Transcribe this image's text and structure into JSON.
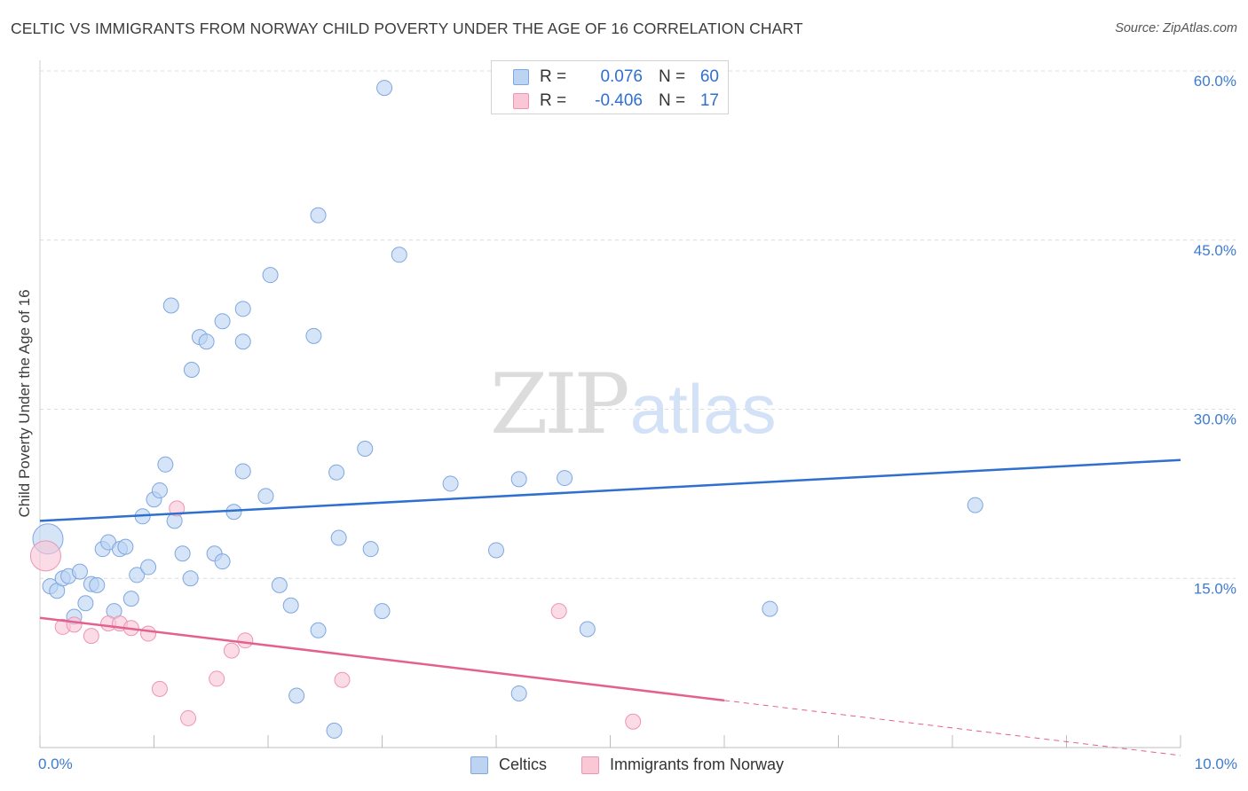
{
  "header": {
    "title": "CELTIC VS IMMIGRANTS FROM NORWAY CHILD POVERTY UNDER THE AGE OF 16 CORRELATION CHART",
    "source": "Source: ZipAtlas.com"
  },
  "watermark": {
    "zip": "ZIP",
    "atlas": "atlas"
  },
  "legend": {
    "r_label": "R =",
    "n_label": "N =",
    "rows": [
      {
        "r": "0.076",
        "n": "60"
      },
      {
        "r": "-0.406",
        "n": "17"
      }
    ]
  },
  "colors": {
    "celtics_fill": "#bcd3f2",
    "celtics_stroke": "#7fa7e0",
    "celtics_line": "#2f6fd0",
    "norway_fill": "#f9c7d6",
    "norway_stroke": "#ee94b2",
    "norway_line": "#e4608f",
    "tick_label": "#3d7bd0",
    "grid": "#dcdcdc"
  },
  "chart_data": {
    "type": "scatter",
    "title": "CELTIC VS IMMIGRANTS FROM NORWAY CHILD POVERTY UNDER THE AGE OF 16 CORRELATION CHART",
    "xlabel": "",
    "ylabel": "Child Poverty Under the Age of 16",
    "xlim": [
      0,
      10
    ],
    "ylim": [
      0,
      60
    ],
    "x_tick_labels": [
      "0.0%",
      "10.0%"
    ],
    "y_ticks": [
      15,
      30,
      45,
      60
    ],
    "y_tick_labels": [
      "15.0%",
      "30.0%",
      "45.0%",
      "60.0%"
    ],
    "grid": true,
    "series": [
      {
        "name": "Celtics",
        "trend": {
          "x": [
            0,
            10
          ],
          "y": [
            20.1,
            25.5
          ],
          "dashed_from": null
        },
        "points": [
          {
            "x": 0.07,
            "y": 18.5,
            "big": true
          },
          {
            "x": 0.09,
            "y": 14.3
          },
          {
            "x": 0.15,
            "y": 13.9
          },
          {
            "x": 0.2,
            "y": 15.0
          },
          {
            "x": 0.25,
            "y": 15.2
          },
          {
            "x": 0.3,
            "y": 11.6
          },
          {
            "x": 0.35,
            "y": 15.6
          },
          {
            "x": 0.4,
            "y": 12.8
          },
          {
            "x": 0.45,
            "y": 14.5
          },
          {
            "x": 0.5,
            "y": 14.4
          },
          {
            "x": 0.55,
            "y": 17.6
          },
          {
            "x": 0.6,
            "y": 18.2
          },
          {
            "x": 0.65,
            "y": 12.1
          },
          {
            "x": 0.7,
            "y": 17.6
          },
          {
            "x": 0.75,
            "y": 17.8
          },
          {
            "x": 0.8,
            "y": 13.2
          },
          {
            "x": 0.85,
            "y": 15.3
          },
          {
            "x": 0.9,
            "y": 20.5
          },
          {
            "x": 0.95,
            "y": 16.0
          },
          {
            "x": 1.0,
            "y": 22.0
          },
          {
            "x": 1.05,
            "y": 22.8
          },
          {
            "x": 1.1,
            "y": 25.1
          },
          {
            "x": 1.18,
            "y": 20.1
          },
          {
            "x": 1.25,
            "y": 17.2
          },
          {
            "x": 1.32,
            "y": 15.0
          },
          {
            "x": 1.4,
            "y": 36.4
          },
          {
            "x": 1.46,
            "y": 36.0
          },
          {
            "x": 1.53,
            "y": 17.2
          },
          {
            "x": 1.6,
            "y": 16.5
          },
          {
            "x": 1.7,
            "y": 20.9
          },
          {
            "x": 1.78,
            "y": 24.5
          },
          {
            "x": 1.98,
            "y": 22.3
          },
          {
            "x": 2.1,
            "y": 14.4
          },
          {
            "x": 2.2,
            "y": 12.6
          },
          {
            "x": 2.44,
            "y": 10.4
          },
          {
            "x": 2.6,
            "y": 24.4
          },
          {
            "x": 2.62,
            "y": 18.6
          },
          {
            "x": 2.85,
            "y": 26.5
          },
          {
            "x": 2.9,
            "y": 17.6
          },
          {
            "x": 3.0,
            "y": 12.1
          },
          {
            "x": 1.15,
            "y": 39.2
          },
          {
            "x": 1.33,
            "y": 33.5
          },
          {
            "x": 1.6,
            "y": 37.8
          },
          {
            "x": 1.78,
            "y": 38.9
          },
          {
            "x": 1.78,
            "y": 36.0
          },
          {
            "x": 2.02,
            "y": 41.9
          },
          {
            "x": 2.4,
            "y": 36.5
          },
          {
            "x": 2.44,
            "y": 47.2
          },
          {
            "x": 3.02,
            "y": 58.5
          },
          {
            "x": 3.15,
            "y": 43.7
          },
          {
            "x": 3.6,
            "y": 23.4
          },
          {
            "x": 4.0,
            "y": 17.5
          },
          {
            "x": 4.2,
            "y": 23.8
          },
          {
            "x": 4.6,
            "y": 23.9
          },
          {
            "x": 4.8,
            "y": 10.5
          },
          {
            "x": 6.4,
            "y": 12.3
          },
          {
            "x": 8.2,
            "y": 21.5
          },
          {
            "x": 2.25,
            "y": 4.6
          },
          {
            "x": 2.58,
            "y": 1.5
          },
          {
            "x": 4.2,
            "y": 4.8
          }
        ]
      },
      {
        "name": "Immigrants from Norway",
        "trend": {
          "x": [
            0,
            10
          ],
          "y": [
            11.5,
            -0.7
          ],
          "dashed_from": 6.0
        },
        "points": [
          {
            "x": 0.05,
            "y": 17.0,
            "big": true
          },
          {
            "x": 0.2,
            "y": 10.7
          },
          {
            "x": 0.3,
            "y": 10.9
          },
          {
            "x": 0.45,
            "y": 9.9
          },
          {
            "x": 0.6,
            "y": 11.0
          },
          {
            "x": 0.7,
            "y": 11.0
          },
          {
            "x": 0.8,
            "y": 10.6
          },
          {
            "x": 0.95,
            "y": 10.1
          },
          {
            "x": 1.05,
            "y": 5.2
          },
          {
            "x": 1.2,
            "y": 21.2
          },
          {
            "x": 1.3,
            "y": 2.6
          },
          {
            "x": 1.55,
            "y": 6.1
          },
          {
            "x": 1.68,
            "y": 8.6
          },
          {
            "x": 1.8,
            "y": 9.5
          },
          {
            "x": 2.65,
            "y": 6.0
          },
          {
            "x": 4.55,
            "y": 12.1
          },
          {
            "x": 5.2,
            "y": 2.3
          }
        ]
      }
    ]
  }
}
